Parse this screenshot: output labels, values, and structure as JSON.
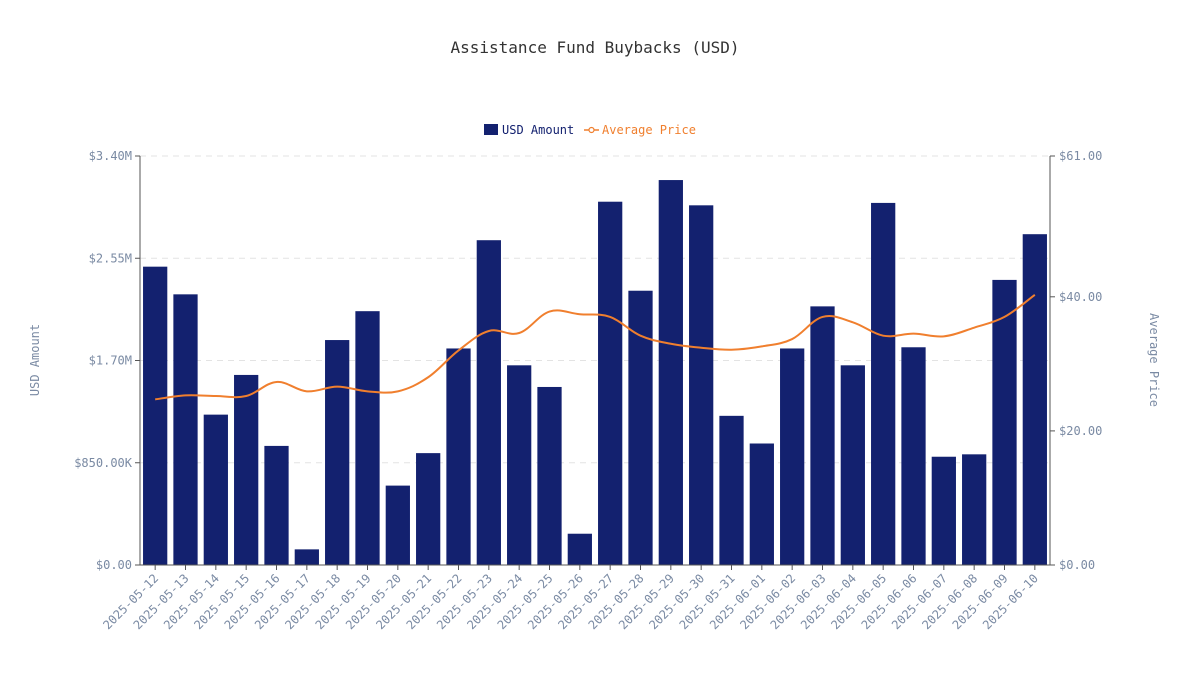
{
  "colors": {
    "bar": "#13216f",
    "line": "#f07f2e",
    "axis_text": "#7a8aa3",
    "grid": "#e3e3e3",
    "title": "#333333",
    "axis_line": "#555555"
  },
  "chart_data": {
    "type": "bar+line",
    "title": "Assistance Fund Buybacks (USD)",
    "ylabel_left": "USD Amount",
    "ylabel_right": "Average Price",
    "legend": {
      "placement": "top-center",
      "entries": [
        "USD Amount",
        "Average Price"
      ]
    },
    "grid": "horizontal dashed",
    "ylim_left": [
      0,
      3400000
    ],
    "yticks_left": [
      "$0.00",
      "$850.00K",
      "$1.70M",
      "$2.55M",
      "$3.40M"
    ],
    "ylim_right": [
      0,
      61
    ],
    "yticks_right": [
      "$0.00",
      "$20.00",
      "$40.00",
      "$61.00"
    ],
    "categories": [
      "2025-05-12",
      "2025-05-13",
      "2025-05-14",
      "2025-05-15",
      "2025-05-16",
      "2025-05-17",
      "2025-05-18",
      "2025-05-19",
      "2025-05-20",
      "2025-05-21",
      "2025-05-22",
      "2025-05-23",
      "2025-05-24",
      "2025-05-25",
      "2025-05-26",
      "2025-05-27",
      "2025-05-28",
      "2025-05-29",
      "2025-05-30",
      "2025-05-31",
      "2025-06-01",
      "2025-06-02",
      "2025-06-03",
      "2025-06-04",
      "2025-06-05",
      "2025-06-06",
      "2025-06-07",
      "2025-06-08",
      "2025-06-09",
      "2025-06-10"
    ],
    "series": [
      {
        "name": "USD Amount",
        "kind": "bar",
        "axis": "left",
        "values": [
          2480000,
          2250000,
          1250000,
          1580000,
          990000,
          130000,
          1870000,
          2110000,
          660000,
          930000,
          1800000,
          2700000,
          1660000,
          1480000,
          260000,
          3020000,
          2280000,
          3200000,
          2990000,
          1240000,
          1010000,
          1800000,
          2150000,
          1660000,
          3010000,
          1810000,
          900000,
          920000,
          2370000,
          2750000
        ]
      },
      {
        "name": "Average Price",
        "kind": "line",
        "axis": "right",
        "values": [
          24.7,
          25.3,
          25.2,
          25.2,
          27.3,
          25.9,
          26.6,
          25.9,
          25.9,
          28.0,
          32.0,
          34.9,
          34.6,
          37.8,
          37.4,
          37.0,
          34.2,
          33.0,
          32.4,
          32.1,
          32.6,
          33.7,
          37.0,
          36.2,
          34.2,
          34.5,
          34.1,
          35.4,
          37.0,
          40.3
        ]
      }
    ]
  }
}
